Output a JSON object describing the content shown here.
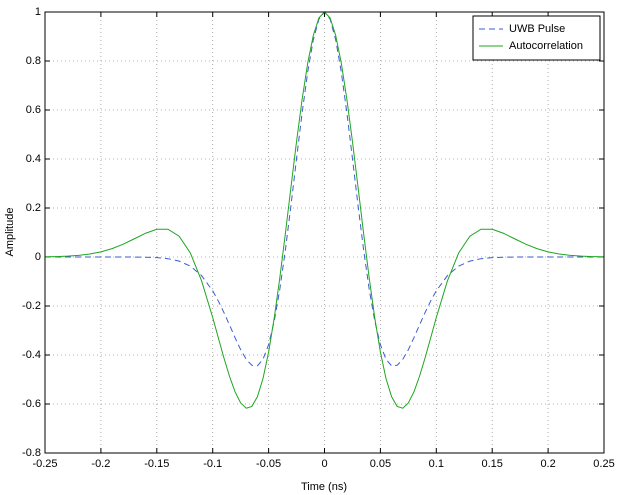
{
  "chart_data": {
    "type": "line",
    "xlabel": "Time (ns)",
    "ylabel": "Amplitude",
    "x": [
      -0.25,
      -0.24,
      -0.23,
      -0.22,
      -0.21,
      -0.2,
      -0.19,
      -0.18,
      -0.17,
      -0.16,
      -0.15,
      -0.14,
      -0.13,
      -0.12,
      -0.11,
      -0.1,
      -0.095,
      -0.09,
      -0.085,
      -0.08,
      -0.075,
      -0.07,
      -0.065,
      -0.06,
      -0.055,
      -0.05,
      -0.045,
      -0.04,
      -0.035,
      -0.03,
      -0.025,
      -0.02,
      -0.015,
      -0.01,
      -0.005,
      0,
      0.005,
      0.01,
      0.015,
      0.02,
      0.025,
      0.03,
      0.035,
      0.04,
      0.045,
      0.05,
      0.055,
      0.06,
      0.065,
      0.07,
      0.075,
      0.08,
      0.085,
      0.09,
      0.095,
      0.1,
      0.11,
      0.12,
      0.13,
      0.14,
      0.15,
      0.16,
      0.17,
      0.18,
      0.19,
      0.2,
      0.21,
      0.22,
      0.23,
      0.24,
      0.25
    ],
    "series": [
      {
        "name": "UWB Pulse",
        "color": "#3b5bd9",
        "linestyle": "dashed",
        "values": [
          0,
          0,
          0,
          0,
          0,
          0,
          0,
          -0.0001,
          -0.0003,
          -0.0009,
          -0.0026,
          -0.0069,
          -0.0168,
          -0.0374,
          -0.0756,
          -0.138,
          -0.1793,
          -0.2263,
          -0.2773,
          -0.3294,
          -0.3782,
          -0.4177,
          -0.4419,
          -0.4441,
          -0.4176,
          -0.358,
          -0.2625,
          -0.1323,
          0.0282,
          0.2104,
          0.4021,
          0.589,
          0.7555,
          0.8869,
          0.971,
          1,
          0.971,
          0.8869,
          0.7555,
          0.589,
          0.4021,
          0.2104,
          0.0282,
          -0.1323,
          -0.2625,
          -0.358,
          -0.4176,
          -0.4441,
          -0.4419,
          -0.4177,
          -0.3782,
          -0.3294,
          -0.2773,
          -0.2263,
          -0.1793,
          -0.138,
          -0.0756,
          -0.0374,
          -0.0168,
          -0.0069,
          -0.0026,
          -0.0009,
          -0.0003,
          -0.0001,
          0,
          0,
          0,
          0,
          0,
          0,
          0
        ]
      },
      {
        "name": "Autocorrelation",
        "color": "#1fa51f",
        "linestyle": "solid",
        "values": [
          0.0008,
          0.0017,
          0.0034,
          0.0066,
          0.0121,
          0.021,
          0.0343,
          0.0524,
          0.0745,
          0.097,
          0.1134,
          0.1135,
          0.0849,
          0.0164,
          -0.0967,
          -0.247,
          -0.3295,
          -0.4111,
          -0.4868,
          -0.5502,
          -0.5958,
          -0.6173,
          -0.6099,
          -0.5701,
          -0.496,
          -0.3882,
          -0.2497,
          -0.0858,
          0.0956,
          0.2851,
          0.4717,
          0.6442,
          0.7918,
          0.9048,
          0.9758,
          1,
          0.9758,
          0.9048,
          0.7918,
          0.6442,
          0.4717,
          0.2851,
          0.0956,
          -0.0858,
          -0.2497,
          -0.3882,
          -0.496,
          -0.5701,
          -0.6099,
          -0.6173,
          -0.5958,
          -0.5502,
          -0.4868,
          -0.4111,
          -0.3295,
          -0.247,
          -0.0967,
          0.0164,
          0.0849,
          0.1135,
          0.1134,
          0.097,
          0.0745,
          0.0524,
          0.0343,
          0.021,
          0.0121,
          0.0066,
          0.0034,
          0.0017,
          0.0008
        ]
      }
    ],
    "xlim": [
      -0.25,
      0.25
    ],
    "xticks": [
      -0.25,
      -0.2,
      -0.15,
      -0.1,
      -0.05,
      0,
      0.05,
      0.1,
      0.15,
      0.2,
      0.25
    ],
    "ylim": [
      -0.8,
      1
    ],
    "yticks": [
      -0.8,
      -0.6,
      -0.4,
      -0.2,
      0,
      0.2,
      0.4,
      0.6,
      0.8,
      1
    ],
    "grid": true,
    "legend": "upper right"
  }
}
